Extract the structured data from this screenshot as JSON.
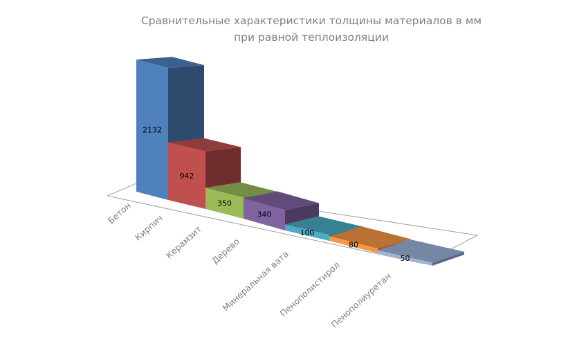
{
  "chart_data": {
    "type": "bar",
    "three_d": true,
    "title_lines": [
      "Сравнительные характеристики толщины материалов в мм",
      "при равной теплоизоляции"
    ],
    "categories": [
      "Бетон",
      "Кирпич",
      "Керамзит",
      "Дерево",
      "Минеральная вата",
      "Пенополистирол",
      "Пенополиуретан"
    ],
    "values": [
      2132,
      942,
      350,
      340,
      100,
      80,
      50
    ],
    "data_labels": [
      "2132",
      "942",
      "350",
      "340",
      "100",
      "80",
      "50"
    ],
    "colors": [
      "#4f81bd",
      "#c0504d",
      "#9bbb59",
      "#8064a2",
      "#4bacc6",
      "#f79646",
      "#9db3dc"
    ],
    "xlabel": "",
    "ylabel": "",
    "grid": false,
    "legend": "none"
  }
}
